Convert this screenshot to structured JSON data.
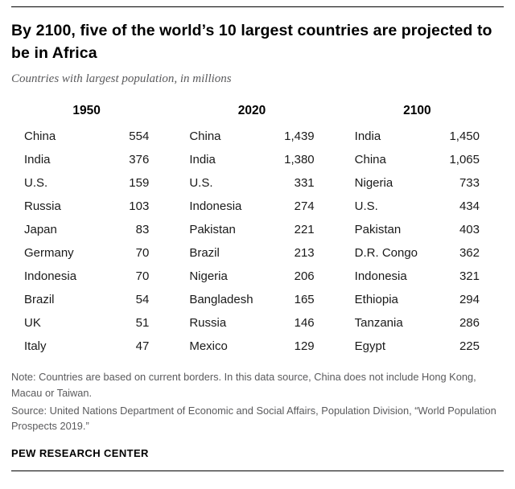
{
  "chart_data": {
    "type": "table",
    "title": "By 2100, five of the world’s 10 largest countries are projected to be in Africa",
    "subtitle": "Countries with largest population, in millions",
    "unit": "millions",
    "columns": [
      {
        "year": "1950",
        "rows": [
          {
            "country": "China",
            "value": "554"
          },
          {
            "country": "India",
            "value": "376"
          },
          {
            "country": "U.S.",
            "value": "159"
          },
          {
            "country": "Russia",
            "value": "103"
          },
          {
            "country": "Japan",
            "value": "83"
          },
          {
            "country": "Germany",
            "value": "70"
          },
          {
            "country": "Indonesia",
            "value": "70"
          },
          {
            "country": "Brazil",
            "value": "54"
          },
          {
            "country": "UK",
            "value": "51"
          },
          {
            "country": "Italy",
            "value": "47"
          }
        ]
      },
      {
        "year": "2020",
        "rows": [
          {
            "country": "China",
            "value": "1,439"
          },
          {
            "country": "India",
            "value": "1,380"
          },
          {
            "country": "U.S.",
            "value": "331"
          },
          {
            "country": "Indonesia",
            "value": "274"
          },
          {
            "country": "Pakistan",
            "value": "221"
          },
          {
            "country": "Brazil",
            "value": "213"
          },
          {
            "country": "Nigeria",
            "value": "206"
          },
          {
            "country": "Bangladesh",
            "value": "165"
          },
          {
            "country": "Russia",
            "value": "146"
          },
          {
            "country": "Mexico",
            "value": "129"
          }
        ]
      },
      {
        "year": "2100",
        "rows": [
          {
            "country": "India",
            "value": "1,450"
          },
          {
            "country": "China",
            "value": "1,065"
          },
          {
            "country": "Nigeria",
            "value": "733"
          },
          {
            "country": "U.S.",
            "value": "434"
          },
          {
            "country": "Pakistan",
            "value": "403"
          },
          {
            "country": "D.R. Congo",
            "value": "362"
          },
          {
            "country": "Indonesia",
            "value": "321"
          },
          {
            "country": "Ethiopia",
            "value": "294"
          },
          {
            "country": "Tanzania",
            "value": "286"
          },
          {
            "country": "Egypt",
            "value": "225"
          }
        ]
      }
    ]
  },
  "footer": {
    "note": "Note: Countries are based on current borders. In this data source, China does not include Hong Kong, Macau or Taiwan.",
    "source": "Source: United Nations Department of Economic and Social Affairs, Population Division, “World Population Prospects 2019.”",
    "brand": "PEW RESEARCH CENTER"
  },
  "colors": {
    "title": "#000000",
    "subtitle_gray": "#5a5a5c",
    "note_gray": "#5a5a5c",
    "rule": "#000000"
  }
}
